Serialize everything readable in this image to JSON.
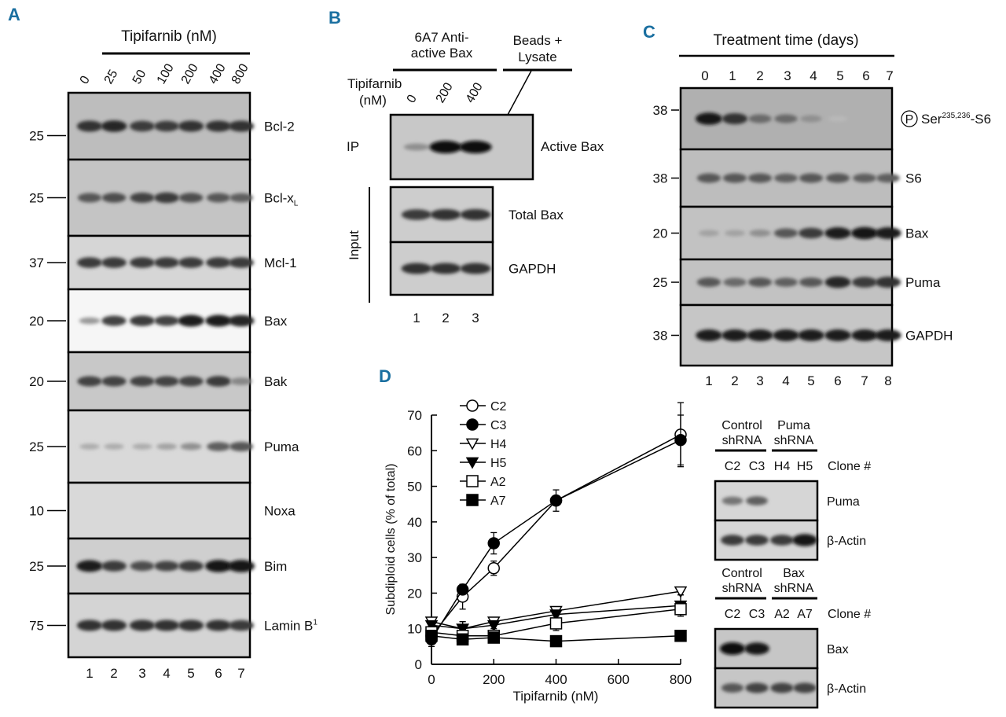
{
  "colors": {
    "panel_letter": "#1a6fa0",
    "band": "#0a0a0a"
  },
  "panelA": {
    "letter": "A",
    "header": "Tipifarnib (nM)",
    "concentrations": [
      "0",
      "25",
      "50",
      "100",
      "200",
      "400",
      "800"
    ],
    "lanes": [
      "1",
      "2",
      "3",
      "4",
      "5",
      "6",
      "7"
    ],
    "strips": [
      {
        "label": "Bcl-2",
        "mw": "25",
        "background": "#bdbdbd",
        "bands": [
          0.8,
          0.85,
          0.75,
          0.75,
          0.8,
          0.8,
          0.8
        ]
      },
      {
        "label": "Bcl-x",
        "sub": "L",
        "mw": "25",
        "background": "#c4c4c4",
        "bands": [
          0.6,
          0.65,
          0.7,
          0.75,
          0.65,
          0.6,
          0.55
        ]
      },
      {
        "label": "Mcl-1",
        "mw": "37",
        "background": "#d6d6d6",
        "bands": [
          0.75,
          0.75,
          0.75,
          0.75,
          0.75,
          0.75,
          0.75
        ]
      },
      {
        "label": "Bax",
        "mw": "20",
        "background": "#f6f6f6",
        "bands": [
          0.25,
          0.7,
          0.75,
          0.7,
          0.9,
          0.9,
          0.85
        ]
      },
      {
        "label": "Bak",
        "mw": "20",
        "background": "#c8c8c8",
        "bands": [
          0.7,
          0.7,
          0.7,
          0.7,
          0.7,
          0.75,
          0.35
        ]
      },
      {
        "label": "Puma",
        "mw": "25",
        "background": "#d9d9d9",
        "bands": [
          0.15,
          0.15,
          0.15,
          0.2,
          0.3,
          0.55,
          0.6
        ]
      },
      {
        "label": "Noxa",
        "mw": "10",
        "background": "#d9d9d9",
        "bands": [
          0,
          0,
          0,
          0,
          0,
          0,
          0
        ]
      },
      {
        "label": "Bim",
        "mw": "25",
        "background": "#cfcfcf",
        "bands": [
          0.9,
          0.75,
          0.65,
          0.7,
          0.75,
          0.95,
          0.95
        ]
      },
      {
        "label": "Lamin B",
        "sup": "1",
        "mw": "75",
        "background": "#d4d4d4",
        "bands": [
          0.8,
          0.8,
          0.8,
          0.8,
          0.8,
          0.8,
          0.75
        ]
      }
    ]
  },
  "panelB": {
    "letter": "B",
    "group1": [
      "6A7 Anti-",
      "active Bax"
    ],
    "group2": [
      "Beads +",
      "Lysate"
    ],
    "treatment_label": [
      "Tipifarnib",
      "(nM)"
    ],
    "concentrations": [
      "0",
      "200",
      "400"
    ],
    "ip_label": "IP",
    "input_label": "Input",
    "lanes": [
      "1",
      "2",
      "3"
    ],
    "ip_strip": {
      "label": "Active Bax",
      "background": "#c8c8c8",
      "bands": [
        0.3,
        1,
        1,
        0
      ]
    },
    "input_strips": [
      {
        "label": "Total Bax",
        "background": "#cdcdcd",
        "bands": [
          0.75,
          0.8,
          0.8
        ]
      },
      {
        "label": "GAPDH",
        "background": "#cdcdcd",
        "bands": [
          0.8,
          0.8,
          0.8
        ]
      }
    ]
  },
  "panelC": {
    "letter": "C",
    "header": "Treatment time (days)",
    "days": [
      "0",
      "1",
      "2",
      "3",
      "4",
      "5",
      "6",
      "7"
    ],
    "lanes": [
      "1",
      "2",
      "3",
      "4",
      "5",
      "6",
      "7",
      "8"
    ],
    "phospho_symbol": "P",
    "strips": [
      {
        "label": "Ser",
        "sup": "235,236",
        "suffix": "-S6",
        "mw": "38",
        "background": "#b0b0b0",
        "bands": [
          0.95,
          0.8,
          0.5,
          0.5,
          0.3,
          0.08,
          0,
          0
        ]
      },
      {
        "label": "S6",
        "mw": "38",
        "background": "#bdbdbd",
        "bands": [
          0.6,
          0.6,
          0.6,
          0.55,
          0.6,
          0.6,
          0.55,
          0.55
        ]
      },
      {
        "label": "Bax",
        "mw": "20",
        "background": "#c2c2c2",
        "bands": [
          0.2,
          0.2,
          0.3,
          0.6,
          0.75,
          0.9,
          0.95,
          0.9
        ]
      },
      {
        "label": "Puma",
        "mw": "25",
        "background": "#c2c2c2",
        "bands": [
          0.6,
          0.5,
          0.6,
          0.55,
          0.6,
          0.85,
          0.75,
          0.8
        ]
      },
      {
        "label": "GAPDH",
        "mw": "38",
        "background": "#c6c6c6",
        "bands": [
          0.9,
          0.9,
          0.9,
          0.9,
          0.9,
          0.9,
          0.9,
          0.9
        ]
      }
    ]
  },
  "panelD": {
    "letter": "D",
    "chart_data": {
      "type": "line",
      "xlabel": "Tipifarnib (nM)",
      "ylabel": "Subdiploid cells (% of total)",
      "xlim": [
        0,
        800
      ],
      "ylim": [
        0,
        70
      ],
      "xticks": [
        "0",
        "200",
        "400",
        "600",
        "800"
      ],
      "yticks": [
        "0",
        "10",
        "20",
        "30",
        "40",
        "50",
        "60",
        "70"
      ],
      "x": [
        0,
        100,
        200,
        400,
        800
      ],
      "legend_position": "top-left",
      "grid": false,
      "series": [
        {
          "name": "C2",
          "marker": "circle",
          "filled": false,
          "values": [
            8,
            19,
            27,
            46,
            64.5
          ],
          "errors": [
            2,
            3.5,
            2,
            0,
            9
          ]
        },
        {
          "name": "C3",
          "marker": "circle",
          "filled": true,
          "values": [
            7,
            21,
            34,
            46,
            63
          ],
          "errors": [
            2,
            1,
            3,
            3,
            7
          ]
        },
        {
          "name": "H4",
          "marker": "triangle-down",
          "filled": false,
          "values": [
            12,
            10,
            12,
            15,
            20.5
          ],
          "errors": [
            1,
            2,
            1,
            1,
            1
          ]
        },
        {
          "name": "H5",
          "marker": "triangle-down",
          "filled": true,
          "values": [
            11,
            10,
            11,
            14,
            16.5
          ],
          "errors": [
            1,
            2,
            1,
            1,
            3
          ]
        },
        {
          "name": "A2",
          "marker": "square",
          "filled": false,
          "values": [
            9,
            8,
            8,
            11.5,
            15.5
          ],
          "errors": [
            1,
            1,
            1,
            2,
            1
          ]
        },
        {
          "name": "A7",
          "marker": "square",
          "filled": true,
          "values": [
            8,
            7,
            7.5,
            6.5,
            8
          ],
          "errors": [
            0,
            0,
            0,
            0,
            0
          ]
        }
      ]
    },
    "inset_puma": {
      "group1": [
        "Control",
        "shRNA"
      ],
      "group2": [
        "Puma",
        "shRNA"
      ],
      "clones": [
        "C2",
        "C3",
        "H4",
        "H5"
      ],
      "clone_label": "Clone #",
      "strips": [
        {
          "label": "Puma",
          "background": "#d6d6d6",
          "bands": [
            0.45,
            0.55,
            0,
            0
          ]
        },
        {
          "label": "β-Actin",
          "background": "#d6d6d6",
          "bands": [
            0.75,
            0.75,
            0.75,
            0.95
          ]
        }
      ]
    },
    "inset_bax": {
      "group1": [
        "Control",
        "shRNA"
      ],
      "group2": [
        "Bax",
        "shRNA"
      ],
      "clones": [
        "C2",
        "C3",
        "A2",
        "A7"
      ],
      "clone_label": "Clone #",
      "strips": [
        {
          "label": "Bax",
          "background": "#c6c6c6",
          "bands": [
            1,
            0.95,
            0,
            0
          ]
        },
        {
          "label": "β-Actin",
          "background": "#c6c6c6",
          "bands": [
            0.6,
            0.7,
            0.7,
            0.7
          ]
        }
      ]
    }
  }
}
